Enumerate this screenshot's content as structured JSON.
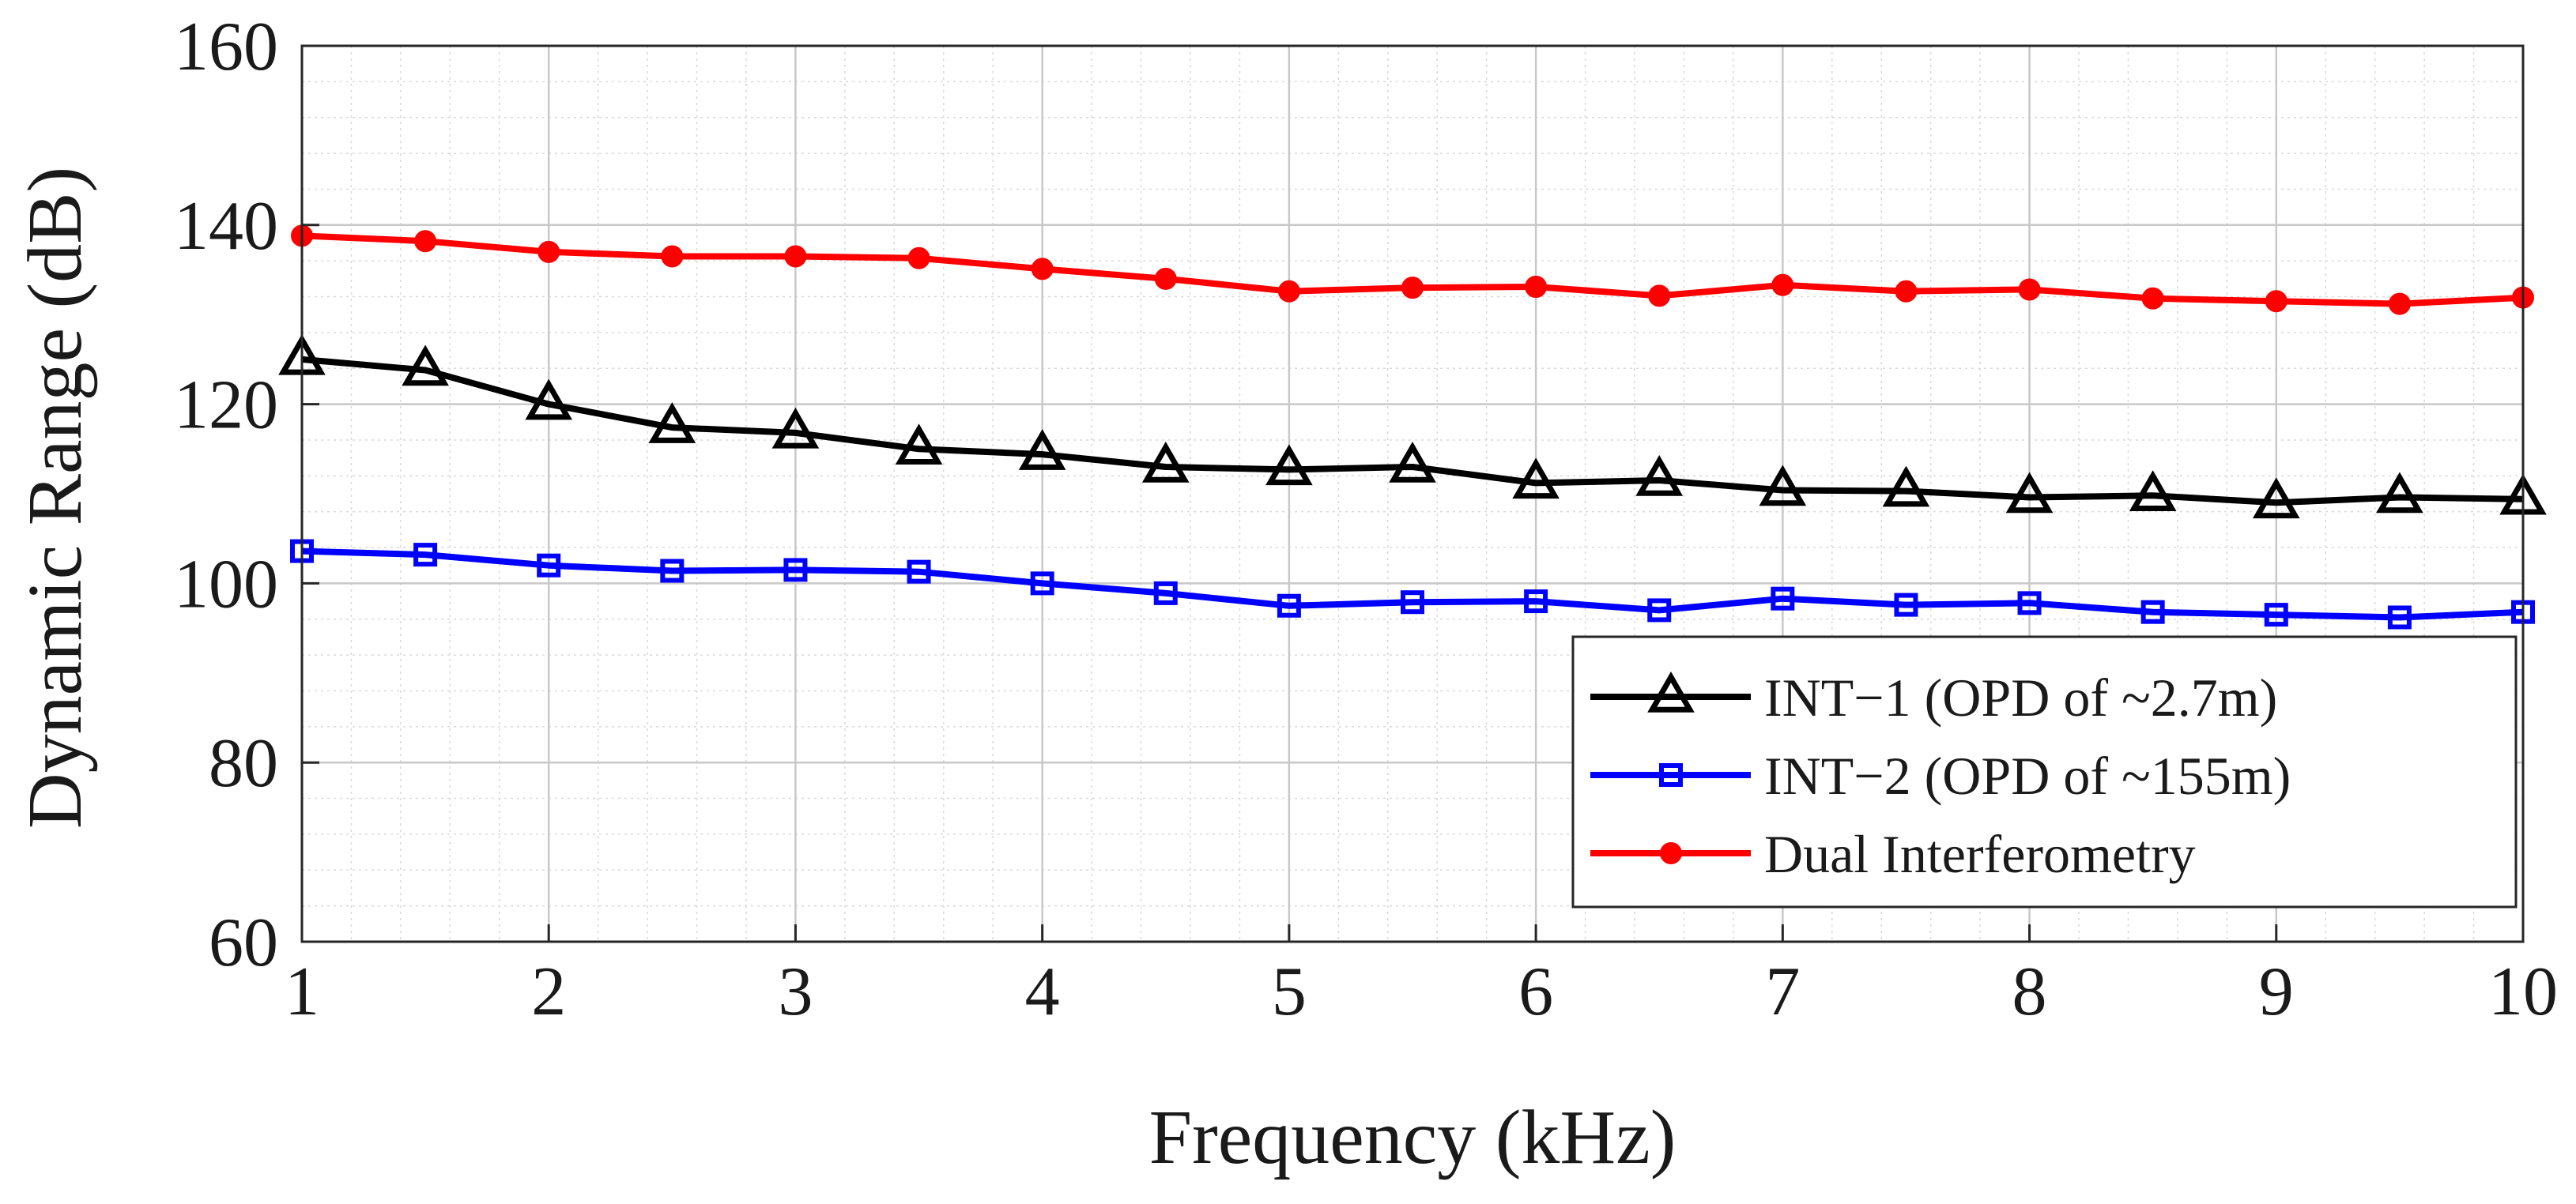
{
  "chart_data": {
    "type": "line",
    "title": "",
    "xlabel": "Frequency (kHz)",
    "ylabel": "Dynamic Range (dB)",
    "xlim": [
      1,
      10
    ],
    "ylim": [
      60,
      160
    ],
    "x_ticks": [
      1,
      2,
      3,
      4,
      5,
      6,
      7,
      8,
      9,
      10
    ],
    "y_ticks": [
      60,
      80,
      100,
      120,
      140,
      160
    ],
    "grid": true,
    "minor_grid": true,
    "legend_position": "bottom-right",
    "x": [
      1,
      1.5,
      2,
      2.5,
      3,
      3.5,
      4,
      4.5,
      5,
      5.5,
      6,
      6.5,
      7,
      7.5,
      8,
      8.5,
      9,
      9.5,
      10
    ],
    "series": [
      {
        "name": "INT−1 (OPD of ~2.7m)",
        "color": "#000000",
        "marker": "triangle",
        "values": [
          125,
          123.8,
          120,
          117.4,
          116.8,
          115,
          114.4,
          113,
          112.7,
          113,
          111.2,
          111.5,
          110.4,
          110.3,
          109.6,
          109.8,
          109,
          109.6,
          109.4
        ]
      },
      {
        "name": "INT−2 (OPD of ~155m)",
        "color": "#0000ff",
        "marker": "square",
        "values": [
          103.6,
          103.2,
          102,
          101.4,
          101.5,
          101.3,
          100,
          98.9,
          97.5,
          97.9,
          98,
          97,
          98.3,
          97.6,
          97.8,
          96.8,
          96.5,
          96.2,
          96.8
        ]
      },
      {
        "name": "Dual Interferometry",
        "color": "#ff0000",
        "marker": "circle",
        "values": [
          138.8,
          138.2,
          137,
          136.5,
          136.5,
          136.3,
          135.1,
          134,
          132.6,
          133,
          133.1,
          132.1,
          133.3,
          132.6,
          132.8,
          131.8,
          131.5,
          131.2,
          131.9
        ]
      }
    ]
  }
}
